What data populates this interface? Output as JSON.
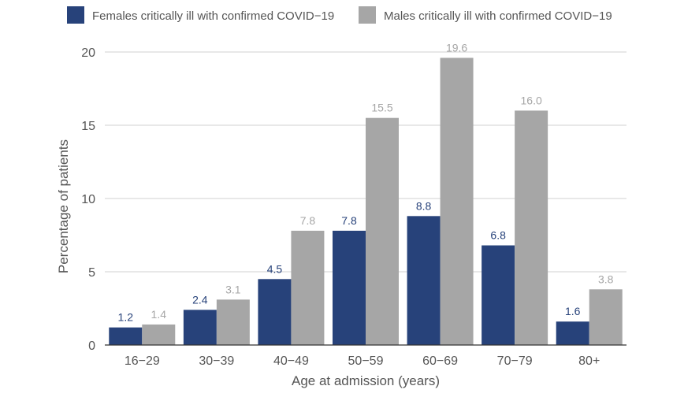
{
  "chart_data": {
    "type": "bar",
    "categories": [
      "16−29",
      "30−39",
      "40−49",
      "50−59",
      "60−69",
      "70−79",
      "80+"
    ],
    "series": [
      {
        "name": "Females critically ill with confirmed COVID−19",
        "color": "#27427a",
        "values": [
          1.2,
          2.4,
          4.5,
          7.8,
          8.8,
          6.8,
          1.6
        ],
        "labels": [
          "1.2",
          "2.4",
          "4.5",
          "7.8",
          "8.8",
          "6.8",
          "1.6"
        ]
      },
      {
        "name": "Males critically ill with confirmed COVID−19",
        "color": "#a6a6a6",
        "values": [
          1.4,
          3.1,
          7.8,
          15.5,
          19.6,
          16.0,
          3.8
        ],
        "labels": [
          "1.4",
          "3.1",
          "7.8",
          "15.5",
          "19.6",
          "16.0",
          "3.8"
        ]
      }
    ],
    "xlabel": "Age at admission (years)",
    "ylabel": "Percentage of patients",
    "ylim": [
      0,
      20
    ],
    "yticks": [
      "0",
      "5",
      "10",
      "15",
      "20"
    ],
    "grid": true,
    "legend_position": "top"
  }
}
